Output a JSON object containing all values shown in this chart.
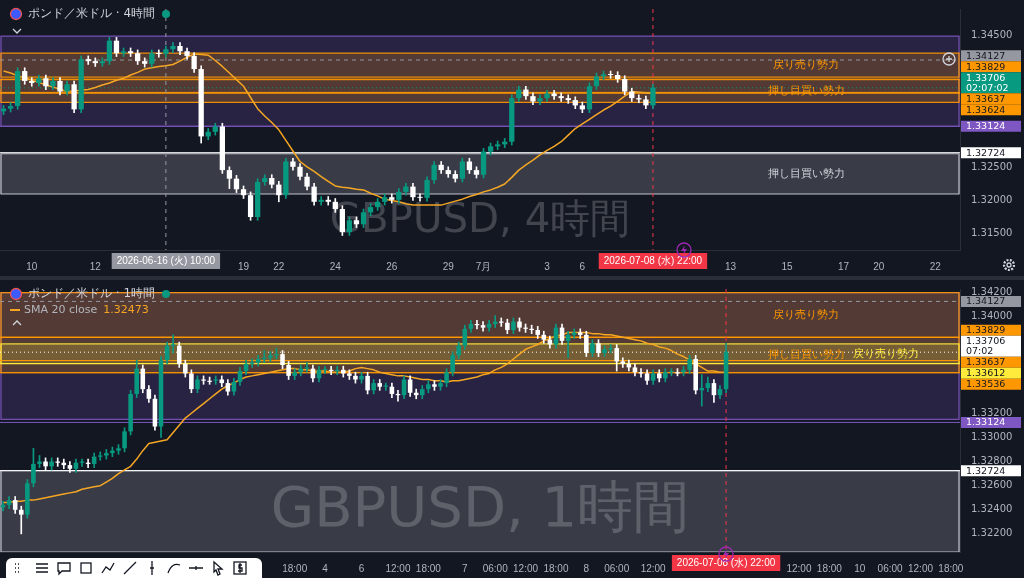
{
  "chart_data": [
    {
      "type": "candlestick",
      "title": "ポンド／米ドル · 4時間",
      "categories": [
        null,
        null,
        null,
        null,
        "10",
        null,
        null,
        null,
        null,
        null,
        null,
        null,
        null,
        "12",
        null,
        null,
        null,
        null,
        null,
        null,
        null,
        null,
        null,
        "2026-06-16 (火) 10:00",
        null,
        null,
        null,
        null,
        null,
        null,
        null,
        null,
        null,
        null,
        "19",
        null,
        null,
        null,
        null,
        "22",
        null,
        null,
        null,
        null,
        null,
        null,
        null,
        "24",
        null,
        null,
        null,
        null,
        null,
        null,
        null,
        "26",
        null,
        null,
        null,
        null,
        null,
        null,
        null,
        "29",
        null,
        null,
        null,
        null,
        "7月",
        null,
        null,
        null,
        null,
        null,
        null,
        null,
        null,
        "3",
        null,
        null,
        null,
        null,
        "6",
        null,
        null,
        null,
        null,
        null,
        null,
        null,
        null,
        null,
        "2026-07-08 (水) 22:00",
        null,
        null,
        null,
        null,
        null,
        null,
        null,
        null,
        null,
        null,
        "13",
        null,
        null,
        null,
        null,
        null,
        null,
        null,
        "15",
        null,
        null,
        null,
        null,
        null,
        null,
        null,
        "17",
        null,
        null,
        null,
        null,
        "20",
        null,
        null,
        null,
        null,
        null,
        null,
        null,
        "22",
        null,
        null,
        null
      ],
      "ohlc": [
        [
          1.3335,
          1.3344,
          1.333,
          1.3339
        ],
        [
          1.3339,
          1.3348,
          1.3334,
          1.3343
        ],
        [
          1.3343,
          1.3401,
          1.3338,
          1.3396
        ],
        [
          1.3396,
          1.3401,
          1.3376,
          1.3381
        ],
        [
          1.3381,
          1.3386,
          1.3373,
          1.3378
        ],
        [
          1.3378,
          1.339,
          1.3373,
          1.3385
        ],
        [
          1.3385,
          1.339,
          1.3368,
          1.3373
        ],
        [
          1.3373,
          1.3386,
          1.3368,
          1.3381
        ],
        [
          1.3381,
          1.3386,
          1.336,
          1.3365
        ],
        [
          1.3365,
          1.3381,
          1.336,
          1.3376
        ],
        [
          1.3376,
          1.3381,
          1.3333,
          1.3338
        ],
        [
          1.3338,
          1.3419,
          1.3333,
          1.3414
        ],
        [
          1.3414,
          1.3419,
          1.3406,
          1.3411
        ],
        [
          1.3411,
          1.3416,
          1.3403,
          1.3408
        ],
        [
          1.3408,
          1.3416,
          1.3403,
          1.3411
        ],
        [
          1.3411,
          1.3447,
          1.3406,
          1.3442
        ],
        [
          1.3442,
          1.3447,
          1.3418,
          1.3423
        ],
        [
          1.3423,
          1.3431,
          1.3418,
          1.3426
        ],
        [
          1.3426,
          1.3431,
          1.3418,
          1.3423
        ],
        [
          1.3423,
          1.3428,
          1.3406,
          1.3411
        ],
        [
          1.3411,
          1.3416,
          1.3402,
          1.3407
        ],
        [
          1.3407,
          1.3428,
          1.3402,
          1.3423
        ],
        [
          1.3423,
          1.3428,
          1.3417,
          1.3422
        ],
        [
          1.3422,
          1.3434,
          1.3417,
          1.3429
        ],
        [
          1.3429,
          1.3439,
          1.3424,
          1.3434
        ],
        [
          1.3434,
          1.3439,
          1.3421,
          1.3426
        ],
        [
          1.3426,
          1.3431,
          1.3414,
          1.3419
        ],
        [
          1.3419,
          1.3424,
          1.3394,
          1.3399
        ],
        [
          1.3399,
          1.3404,
          1.3287,
          1.3297
        ],
        [
          1.3297,
          1.3309,
          1.3292,
          1.3304
        ],
        [
          1.3304,
          1.3317,
          1.3299,
          1.3312
        ],
        [
          1.3312,
          1.3317,
          1.3241,
          1.3246
        ],
        [
          1.3246,
          1.3251,
          1.3218,
          1.3233
        ],
        [
          1.3233,
          1.3238,
          1.3212,
          1.3217
        ],
        [
          1.3217,
          1.3222,
          1.3203,
          1.3208
        ],
        [
          1.3208,
          1.3213,
          1.317,
          1.3175
        ],
        [
          1.3175,
          1.3233,
          1.317,
          1.3228
        ],
        [
          1.3228,
          1.3239,
          1.3223,
          1.3234
        ],
        [
          1.3234,
          1.3239,
          1.3219,
          1.3224
        ],
        [
          1.3224,
          1.3229,
          1.3198,
          1.3208
        ],
        [
          1.3208,
          1.3264,
          1.3203,
          1.3259
        ],
        [
          1.3259,
          1.3264,
          1.3246,
          1.3251
        ],
        [
          1.3251,
          1.3256,
          1.3231,
          1.3236
        ],
        [
          1.3236,
          1.3241,
          1.3216,
          1.3221
        ],
        [
          1.3221,
          1.3226,
          1.3193,
          1.3198
        ],
        [
          1.3198,
          1.3206,
          1.3193,
          1.3201
        ],
        [
          1.3201,
          1.3206,
          1.3193,
          1.3198
        ],
        [
          1.3198,
          1.3203,
          1.3182,
          1.3187
        ],
        [
          1.3187,
          1.3192,
          1.3147,
          1.3152
        ],
        [
          1.3152,
          1.3175,
          1.3147,
          1.317
        ],
        [
          1.317,
          1.3175,
          1.3159,
          1.3164
        ],
        [
          1.3164,
          1.3187,
          1.3159,
          1.3182
        ],
        [
          1.3182,
          1.3195,
          1.3177,
          1.319
        ],
        [
          1.319,
          1.3203,
          1.3185,
          1.3198
        ],
        [
          1.3198,
          1.321,
          1.3193,
          1.3205
        ],
        [
          1.3205,
          1.321,
          1.3196,
          1.3201
        ],
        [
          1.3201,
          1.3218,
          1.3196,
          1.3213
        ],
        [
          1.3213,
          1.3226,
          1.3208,
          1.3221
        ],
        [
          1.3221,
          1.3226,
          1.32,
          1.3205
        ],
        [
          1.3205,
          1.321,
          1.3199,
          1.3204
        ],
        [
          1.3204,
          1.3236,
          1.3199,
          1.3231
        ],
        [
          1.3231,
          1.3259,
          1.3226,
          1.3254
        ],
        [
          1.3254,
          1.3259,
          1.3241,
          1.3246
        ],
        [
          1.3246,
          1.3251,
          1.3235,
          1.324
        ],
        [
          1.324,
          1.3245,
          1.3228,
          1.3233
        ],
        [
          1.3233,
          1.3264,
          1.3228,
          1.3259
        ],
        [
          1.3259,
          1.3264,
          1.3241,
          1.3246
        ],
        [
          1.3246,
          1.3251,
          1.3234,
          1.3239
        ],
        [
          1.3239,
          1.3279,
          1.3234,
          1.3274
        ],
        [
          1.3274,
          1.3287,
          1.3269,
          1.3282
        ],
        [
          1.3282,
          1.329,
          1.3277,
          1.3285
        ],
        [
          1.3285,
          1.3294,
          1.328,
          1.3289
        ],
        [
          1.3289,
          1.336,
          1.3284,
          1.3355
        ],
        [
          1.3355,
          1.3373,
          1.335,
          1.3368
        ],
        [
          1.3368,
          1.3373,
          1.3353,
          1.3358
        ],
        [
          1.3358,
          1.3363,
          1.3345,
          1.335
        ],
        [
          1.335,
          1.336,
          1.3345,
          1.3355
        ],
        [
          1.3355,
          1.3367,
          1.335,
          1.3362
        ],
        [
          1.3362,
          1.3367,
          1.3353,
          1.3358
        ],
        [
          1.3358,
          1.3363,
          1.335,
          1.3355
        ],
        [
          1.3355,
          1.336,
          1.3347,
          1.3352
        ],
        [
          1.3352,
          1.3357,
          1.3339,
          1.3344
        ],
        [
          1.3344,
          1.3349,
          1.3333,
          1.3338
        ],
        [
          1.3338,
          1.3378,
          1.3333,
          1.3373
        ],
        [
          1.3373,
          1.3393,
          1.3368,
          1.3388
        ],
        [
          1.3388,
          1.3396,
          1.3383,
          1.3391
        ],
        [
          1.3391,
          1.3396,
          1.3385,
          1.339
        ],
        [
          1.339,
          1.3395,
          1.3379,
          1.3384
        ],
        [
          1.3384,
          1.3389,
          1.336,
          1.3365
        ],
        [
          1.3365,
          1.337,
          1.335,
          1.3355
        ],
        [
          1.3355,
          1.336,
          1.3348,
          1.3353
        ],
        [
          1.3353,
          1.3358,
          1.3339,
          1.3344
        ],
        [
          1.3344,
          1.3376,
          1.3339,
          1.3371
        ],
        null,
        null,
        null,
        null,
        null,
        null,
        null,
        null,
        null,
        null,
        null,
        null,
        null,
        null,
        null,
        null,
        null,
        null,
        null,
        null,
        null,
        null,
        null,
        null,
        null,
        null,
        null,
        null,
        null,
        null,
        null,
        null,
        null,
        null,
        null,
        null,
        null,
        null,
        null,
        null,
        null,
        null,
        null
      ],
      "series": [
        {
          "type": "line",
          "color": "#f5a623",
          "values": [
            1.3396,
            1.3393,
            1.3389,
            1.3386,
            1.3382,
            1.3379,
            1.3375,
            1.3372,
            1.3368,
            1.3365,
            1.3366,
            1.3367,
            1.3368,
            1.3371,
            1.3375,
            1.3378,
            1.3382,
            1.3385,
            1.339,
            1.3394,
            1.3399,
            1.3401,
            1.3403,
            1.3404,
            1.3406,
            1.3411,
            1.3417,
            1.3422,
            1.3421,
            1.342,
            1.3412,
            1.3403,
            1.3393,
            1.3383,
            1.3373,
            1.3356,
            1.3339,
            1.3328,
            1.3318,
            1.3307,
            1.3291,
            1.3275,
            1.3259,
            1.3251,
            1.3244,
            1.3236,
            1.3229,
            1.3222,
            1.322,
            1.3219,
            1.3217,
            1.3216,
            1.3211,
            1.3207,
            1.3202,
            1.32,
            1.3198,
            1.3195,
            1.3193,
            1.3193,
            1.3193,
            1.3193,
            1.3193,
            1.3196,
            1.3199,
            1.3202,
            1.3206,
            1.3209,
            1.3213,
            1.3216,
            1.322,
            1.3225,
            1.3235,
            1.3246,
            1.3254,
            1.3261,
            1.3269,
            1.3276,
            1.3282,
            1.3289,
            1.3299,
            1.3309,
            1.3316,
            1.3323,
            1.333,
            1.3337,
            1.3343,
            1.335,
            1.3358,
            1.3365,
            1.3364,
            1.3363,
            1.3362,
            null,
            null,
            null,
            null,
            null,
            null,
            null,
            null,
            null,
            null,
            null,
            null,
            null,
            null,
            null,
            null,
            null,
            null,
            null,
            null,
            null,
            null,
            null,
            null,
            null,
            null,
            null,
            null,
            null,
            null,
            null,
            null,
            null,
            null,
            null,
            null,
            null,
            null,
            null,
            null,
            null,
            null,
            null
          ]
        }
      ],
      "ylim": [
        1.3125,
        1.349
      ],
      "yticks": [
        {
          "value": 1.315,
          "label": "1.31500"
        },
        {
          "value": 1.32,
          "label": "1.32000"
        },
        {
          "value": 1.325,
          "label": "1.32500"
        },
        {
          "value": 1.345,
          "label": "1.34500"
        }
      ],
      "bands": [
        {
          "axis": "y",
          "from": 1.33124,
          "to": 1.3449,
          "color": "#7e57c2"
        },
        {
          "axis": "y",
          "from": 1.33867,
          "to": 1.34233,
          "label": "戻り売り勢力",
          "color": "#ff9800"
        },
        {
          "axis": "y",
          "from": 1.33486,
          "to": 1.33837,
          "label": "押し目買い勢力",
          "color": "#ff9800"
        },
        {
          "axis": "y",
          "from": 1.32098,
          "to": 1.32708,
          "label": "押し目買い勢力",
          "color": "#d1d4dc"
        }
      ],
      "ref_lines": [
        {
          "axis": "y",
          "value": 1.34127,
          "label": "1.34127",
          "color": "#9598a1",
          "line_style": "dashed"
        },
        {
          "axis": "y",
          "value": 1.33829,
          "label": "1.33829",
          "color": "#ff9800"
        },
        {
          "axis": "y",
          "value": 1.33706,
          "label": "1.33706 02:07:02",
          "color": "#089981",
          "line_style": "dotted"
        },
        {
          "axis": "y",
          "value": 1.33637,
          "label": "1.33637",
          "color": "#ff9800"
        },
        {
          "axis": "y",
          "value": 1.33624,
          "label": "1.33624",
          "color": "#ff9800"
        },
        {
          "axis": "y",
          "value": 1.33124,
          "label": "1.33124",
          "color": "#7e57c2"
        },
        {
          "axis": "y",
          "value": 1.32724,
          "label": "1.32724",
          "color": "#ffffff"
        },
        {
          "axis": "x",
          "value": "2026-06-16 (火) 10:00",
          "color": "#9598a1",
          "line_style": "dashed"
        },
        {
          "axis": "x",
          "value": "2026-07-08 (水) 22:00",
          "color": "#f23645",
          "line_style": "dashed"
        }
      ],
      "annotations": [
        "GBPUSD, 4時間"
      ]
    },
    {
      "type": "candlestick",
      "title": "ポンド／米ドル · 1時間",
      "categories": [
        null,
        null,
        null,
        null,
        null,
        null,
        null,
        null,
        null,
        null,
        null,
        null,
        null,
        null,
        null,
        null,
        null,
        null,
        null,
        null,
        null,
        null,
        null,
        null,
        null,
        null,
        null,
        null,
        null,
        null,
        null,
        null,
        null,
        null,
        null,
        null,
        null,
        null,
        null,
        null,
        null,
        null,
        null,
        null,
        null,
        null,
        null,
        null,
        "18:00",
        null,
        null,
        null,
        null,
        "4",
        null,
        null,
        null,
        null,
        null,
        "6",
        null,
        null,
        null,
        null,
        null,
        "12:00",
        null,
        null,
        null,
        null,
        "18:00",
        null,
        null,
        null,
        null,
        null,
        "7",
        null,
        null,
        null,
        null,
        "06:00",
        null,
        null,
        null,
        null,
        "12:00",
        null,
        null,
        null,
        null,
        "18:00",
        null,
        null,
        null,
        null,
        "8",
        null,
        null,
        null,
        null,
        "06:00",
        null,
        null,
        null,
        null,
        null,
        "12:00",
        null,
        null,
        null,
        null,
        null,
        null,
        null,
        null,
        null,
        null,
        null,
        "2026-07-08 (水) 22:00",
        null,
        null,
        null,
        null,
        null,
        null,
        null,
        null,
        null,
        null,
        null,
        "12:00",
        null,
        null,
        null,
        null,
        "18:00",
        null,
        null,
        null,
        null,
        "10",
        null,
        null,
        null,
        null,
        "06:00",
        null,
        null,
        null,
        null,
        "12:00",
        null,
        null,
        null,
        null,
        "18:00",
        null
      ],
      "ohlc": [
        [
          1.3242,
          1.3247,
          1.3239,
          1.3244
        ],
        [
          1.3244,
          1.3251,
          1.3241,
          1.3248
        ],
        [
          1.3248,
          1.3251,
          1.3237,
          1.324
        ],
        [
          1.324,
          1.3243,
          1.322,
          1.3236
        ],
        [
          1.3236,
          1.3265,
          1.3233,
          1.3262
        ],
        [
          1.3262,
          1.3291,
          1.3259,
          1.3278
        ],
        [
          1.3278,
          1.3285,
          1.3275,
          1.328
        ],
        [
          1.328,
          1.3283,
          1.3273,
          1.3276
        ],
        [
          1.3276,
          1.3283,
          1.3273,
          1.328
        ],
        [
          1.328,
          1.3283,
          1.3276,
          1.3279
        ],
        [
          1.3279,
          1.3282,
          1.3274,
          1.3277
        ],
        [
          1.3277,
          1.328,
          1.3271,
          1.3274
        ],
        [
          1.3274,
          1.3282,
          1.3271,
          1.3279
        ],
        [
          1.3279,
          1.3282,
          1.3276,
          1.328
        ],
        [
          1.3279,
          1.3282,
          1.3275,
          1.3278
        ],
        [
          1.3278,
          1.3287,
          1.3275,
          1.3284
        ],
        [
          1.3284,
          1.3288,
          1.3281,
          1.3285
        ],
        [
          1.3285,
          1.329,
          1.3282,
          1.3287
        ],
        [
          1.3287,
          1.3292,
          1.3284,
          1.3289
        ],
        [
          1.3289,
          1.3294,
          1.3286,
          1.3291
        ],
        [
          1.3291,
          1.3308,
          1.3288,
          1.3305
        ],
        [
          1.3305,
          1.3339,
          1.3302,
          1.3336
        ],
        [
          1.3336,
          1.3364,
          1.3333,
          1.3357
        ],
        [
          1.3357,
          1.336,
          1.3337,
          1.334
        ],
        [
          1.334,
          1.3343,
          1.3329,
          1.3332
        ],
        [
          1.3332,
          1.3335,
          1.3306,
          1.3309
        ],
        [
          1.3309,
          1.3367,
          1.33,
          1.3364
        ],
        [
          1.3364,
          1.3379,
          1.3361,
          1.3376
        ],
        [
          1.3376,
          1.3385,
          1.337,
          1.3377
        ],
        [
          1.3376,
          1.3379,
          1.3358,
          1.3361
        ],
        [
          1.3361,
          1.3364,
          1.335,
          1.3353
        ],
        [
          1.3353,
          1.3356,
          1.3337,
          1.334
        ],
        [
          1.334,
          1.3351,
          1.3337,
          1.3348
        ],
        [
          1.3348,
          1.3351,
          1.3344,
          1.3347
        ],
        [
          1.3347,
          1.335,
          1.3344,
          1.3346
        ],
        [
          1.3347,
          1.3351,
          1.3344,
          1.3348
        ],
        [
          1.3348,
          1.3351,
          1.3342,
          1.3345
        ],
        [
          1.3345,
          1.3348,
          1.3335,
          1.3338
        ],
        [
          1.3338,
          1.3349,
          1.3335,
          1.3346
        ],
        [
          1.3346,
          1.3358,
          1.3343,
          1.3355
        ],
        [
          1.3355,
          1.3364,
          1.3352,
          1.3361
        ],
        [
          1.3361,
          1.3365,
          1.3358,
          1.3362
        ],
        [
          1.3362,
          1.3368,
          1.3359,
          1.3365
        ],
        [
          1.3365,
          1.3372,
          1.3362,
          1.3366
        ],
        [
          1.3366,
          1.3371,
          1.3363,
          1.3368
        ],
        [
          1.3368,
          1.3374,
          1.3365,
          1.3369
        ],
        [
          1.3369,
          1.3372,
          1.3357,
          1.336
        ],
        [
          1.336,
          1.3363,
          1.3348,
          1.3351
        ],
        [
          1.3351,
          1.3357,
          1.3348,
          1.3354
        ],
        [
          1.3354,
          1.336,
          1.3351,
          1.3357
        ],
        [
          1.3357,
          1.3362,
          1.3354,
          1.3358
        ],
        [
          1.3357,
          1.336,
          1.3346,
          1.3349
        ],
        [
          1.3349,
          1.3359,
          1.3346,
          1.3356
        ],
        [
          1.3356,
          1.3359,
          1.3353,
          1.3356
        ],
        [
          1.3356,
          1.3359,
          1.3352,
          1.3355
        ],
        [
          1.3355,
          1.3359,
          1.3352,
          1.3356
        ],
        [
          1.3356,
          1.3359,
          1.335,
          1.3353
        ],
        [
          1.3353,
          1.3356,
          1.3348,
          1.3351
        ],
        [
          1.3351,
          1.3354,
          1.3345,
          1.3348
        ],
        [
          1.3348,
          1.3354,
          1.3345,
          1.3351
        ],
        [
          1.3351,
          1.3354,
          1.3336,
          1.3339
        ],
        [
          1.3339,
          1.3348,
          1.3336,
          1.3345
        ],
        [
          1.3345,
          1.3348,
          1.3339,
          1.3342
        ],
        [
          1.3342,
          1.3345,
          1.3339,
          1.3343
        ],
        [
          1.3342,
          1.3345,
          1.3333,
          1.3336
        ],
        [
          1.3336,
          1.3339,
          1.333,
          1.3335
        ],
        [
          1.3335,
          1.3351,
          1.3332,
          1.3348
        ],
        [
          1.3348,
          1.3351,
          1.3334,
          1.3337
        ],
        [
          1.3337,
          1.334,
          1.3332,
          1.3335
        ],
        [
          1.3335,
          1.3343,
          1.3332,
          1.334
        ],
        [
          1.334,
          1.3347,
          1.3337,
          1.3344
        ],
        [
          1.3344,
          1.3347,
          1.3339,
          1.3342
        ],
        [
          1.3342,
          1.3348,
          1.3339,
          1.3345
        ],
        [
          1.3345,
          1.3357,
          1.3342,
          1.3354
        ],
        [
          1.3354,
          1.3371,
          1.3351,
          1.3368
        ],
        [
          1.3368,
          1.3379,
          1.3365,
          1.3376
        ],
        [
          1.3376,
          1.3393,
          1.3373,
          1.339
        ],
        [
          1.339,
          1.3397,
          1.3387,
          1.3394
        ],
        [
          1.3394,
          1.3397,
          1.339,
          1.3393
        ],
        [
          1.3393,
          1.3396,
          1.3388,
          1.3391
        ],
        [
          1.3391,
          1.3397,
          1.3388,
          1.3394
        ],
        [
          1.3394,
          1.3401,
          1.3391,
          1.3396
        ],
        [
          1.3396,
          1.3399,
          1.3392,
          1.3395
        ],
        [
          1.3395,
          1.3398,
          1.3386,
          1.3389
        ],
        [
          1.3389,
          1.3399,
          1.3386,
          1.3396
        ],
        [
          1.3396,
          1.3399,
          1.3388,
          1.3391
        ],
        [
          1.3391,
          1.3394,
          1.3387,
          1.339
        ],
        [
          1.339,
          1.3393,
          1.3386,
          1.3389
        ],
        [
          1.3389,
          1.3392,
          1.3382,
          1.3385
        ],
        [
          1.3385,
          1.3388,
          1.3378,
          1.3381
        ],
        [
          1.3381,
          1.3384,
          1.3374,
          1.3377
        ],
        [
          1.3377,
          1.3394,
          1.3374,
          1.3391
        ],
        [
          1.3391,
          1.3394,
          1.3377,
          1.338
        ],
        [
          1.338,
          1.3388,
          1.3366,
          1.3385
        ],
        [
          1.3385,
          1.339,
          1.3382,
          1.3387
        ],
        [
          1.3387,
          1.339,
          1.3382,
          1.3385
        ],
        [
          1.3385,
          1.3388,
          1.3367,
          1.337
        ],
        [
          1.337,
          1.3381,
          1.3367,
          1.3378
        ],
        [
          1.3378,
          1.3381,
          1.3367,
          1.337
        ],
        [
          1.337,
          1.3376,
          1.3367,
          1.3373
        ],
        [
          1.3373,
          1.3377,
          1.337,
          1.3374
        ],
        [
          1.3374,
          1.3377,
          1.3355,
          1.3363
        ],
        [
          1.3363,
          1.3366,
          1.3358,
          1.3361
        ],
        [
          1.3361,
          1.3364,
          1.3355,
          1.3358
        ],
        [
          1.3358,
          1.3361,
          1.3351,
          1.3354
        ],
        [
          1.3354,
          1.3357,
          1.335,
          1.3353
        ],
        [
          1.3353,
          1.3356,
          1.3344,
          1.3347
        ],
        [
          1.3347,
          1.3356,
          1.3344,
          1.3353
        ],
        [
          1.3353,
          1.3356,
          1.3346,
          1.3349
        ],
        [
          1.3349,
          1.3357,
          1.3346,
          1.3354
        ],
        [
          1.3354,
          1.3357,
          1.3351,
          1.3355
        ],
        [
          1.3354,
          1.3357,
          1.3351,
          1.3353
        ],
        [
          1.3354,
          1.3359,
          1.3351,
          1.3356
        ],
        [
          1.3356,
          1.3368,
          1.3353,
          1.3365
        ],
        [
          1.3365,
          1.3368,
          1.3336,
          1.3339
        ],
        [
          1.3339,
          1.3352,
          1.3326,
          1.3341
        ],
        [
          1.3341,
          1.335,
          1.3338,
          1.3345
        ],
        [
          1.3345,
          1.3348,
          1.3329,
          1.3335
        ],
        [
          1.3335,
          1.3343,
          1.3332,
          1.334
        ],
        [
          1.334,
          1.3378,
          1.3337,
          1.3371
        ],
        null,
        null,
        null,
        null,
        null,
        null,
        null,
        null,
        null,
        null,
        null,
        null,
        null,
        null,
        null,
        null,
        null,
        null,
        null,
        null,
        null,
        null,
        null,
        null,
        null,
        null,
        null,
        null,
        null,
        null,
        null,
        null,
        null,
        null,
        null,
        null,
        null,
        null
      ],
      "series": [
        {
          "type": "line",
          "name": "SMA 20 close",
          "color": "#f5a623",
          "values": [
            1.3246,
            1.3246,
            1.3247,
            1.3247,
            1.3248,
            1.3248,
            1.3249,
            1.325,
            1.3251,
            1.3252,
            1.3253,
            1.3254,
            1.3255,
            1.3257,
            1.3258,
            1.3259,
            1.326,
            1.3263,
            1.3266,
            1.327,
            1.3273,
            1.3276,
            1.3282,
            1.3289,
            1.3295,
            1.3296,
            1.3297,
            1.3298,
            1.3304,
            1.331,
            1.3316,
            1.332,
            1.3324,
            1.3328,
            1.3332,
            1.3336,
            1.334,
            1.3343,
            1.3345,
            1.3348,
            1.335,
            1.3351,
            1.3352,
            1.3353,
            1.3354,
            1.3355,
            1.3356,
            1.3357,
            1.3357,
            1.3356,
            1.3356,
            1.3355,
            1.3355,
            1.3355,
            1.3354,
            1.3354,
            1.3354,
            1.3355,
            1.3357,
            1.3358,
            1.3357,
            1.3356,
            1.3354,
            1.3353,
            1.3352,
            1.3351,
            1.3351,
            1.335,
            1.3349,
            1.3348,
            1.3348,
            1.3347,
            1.3347,
            1.3346,
            1.3347,
            1.3347,
            1.3348,
            1.3349,
            1.335,
            1.3352,
            1.3353,
            1.3356,
            1.3358,
            1.3361,
            1.3365,
            1.3369,
            1.3373,
            1.3375,
            1.3377,
            1.338,
            1.3382,
            1.3384,
            1.3385,
            1.3387,
            1.3387,
            1.3387,
            1.3387,
            1.3386,
            1.3386,
            1.3385,
            1.3385,
            1.3384,
            1.3383,
            1.3382,
            1.3381,
            1.338,
            1.3378,
            1.3377,
            1.3375,
            1.3374,
            1.3372,
            1.3369,
            1.3367,
            1.3364,
            1.3361,
            1.3358,
            1.3355,
            1.3355,
            1.3354,
            1.3354,
            null,
            null,
            null,
            null,
            null,
            null,
            null,
            null,
            null,
            null,
            null,
            null,
            null,
            null,
            null,
            null,
            null,
            null,
            null,
            null,
            null,
            null,
            null,
            null,
            null,
            null,
            null,
            null,
            null,
            null,
            null,
            null,
            null,
            null,
            null,
            null,
            null,
            null
          ]
        }
      ],
      "legend": "top left",
      "ylim": [
        1.3205,
        1.3423
      ],
      "yticks": [
        {
          "value": 1.322,
          "label": "1.32200"
        },
        {
          "value": 1.324,
          "label": "1.32400"
        },
        {
          "value": 1.326,
          "label": "1.32600"
        },
        {
          "value": 1.328,
          "label": "1.32800"
        },
        {
          "value": 1.33,
          "label": "1.33000"
        },
        {
          "value": 1.332,
          "label": "1.33200"
        },
        {
          "value": 1.34,
          "label": "1.34000"
        },
        {
          "value": 1.342,
          "label": "1.34200"
        }
      ],
      "bands": [
        {
          "axis": "y",
          "from": 1.3315,
          "to": 1.342,
          "color": "#7e57c2"
        },
        {
          "axis": "y",
          "from": 1.33829,
          "to": 1.342,
          "label": "戻り売り勢力",
          "color": "#ff9800"
        },
        {
          "axis": "y",
          "from": 1.33536,
          "to": 1.33829,
          "label": "押し目買い勢力",
          "color": "#ff9800"
        },
        {
          "axis": "y",
          "from": 1.33612,
          "to": 1.33775,
          "label": "戻り売り勢力",
          "color": "#ffeb3b"
        },
        {
          "axis": "y",
          "from": 1.3205,
          "to": 1.32724,
          "color": "#d1d4dc"
        }
      ],
      "ref_lines": [
        {
          "axis": "y",
          "value": 1.34127,
          "label": "1.34127",
          "color": "#9598a1",
          "line_style": "dashed"
        },
        {
          "axis": "y",
          "value": 1.33829,
          "label": "1.33829",
          "color": "#ff9800"
        },
        {
          "axis": "y",
          "value": 1.33706,
          "label": "1.33706 07:02",
          "color": "#ffffff",
          "line_style": "dotted"
        },
        {
          "axis": "y",
          "value": 1.33637,
          "label": "1.33637",
          "color": "#ff9800"
        },
        {
          "axis": "y",
          "value": 1.33612,
          "label": "1.33612",
          "color": "#ffeb3b"
        },
        {
          "axis": "y",
          "value": 1.33536,
          "label": "1.33536",
          "color": "#ff9800"
        },
        {
          "axis": "y",
          "value": 1.33124,
          "label": "1.33124",
          "color": "#7e57c2"
        },
        {
          "axis": "y",
          "value": 1.32724,
          "label": "1.32724",
          "color": "#ffffff"
        },
        {
          "axis": "x",
          "value": "2026-07-08 (水) 22:00",
          "color": "#f23645",
          "line_style": "dashed"
        }
      ],
      "annotations": [
        "GBPUSD, 1時間",
        "1.32473"
      ]
    }
  ]
}
